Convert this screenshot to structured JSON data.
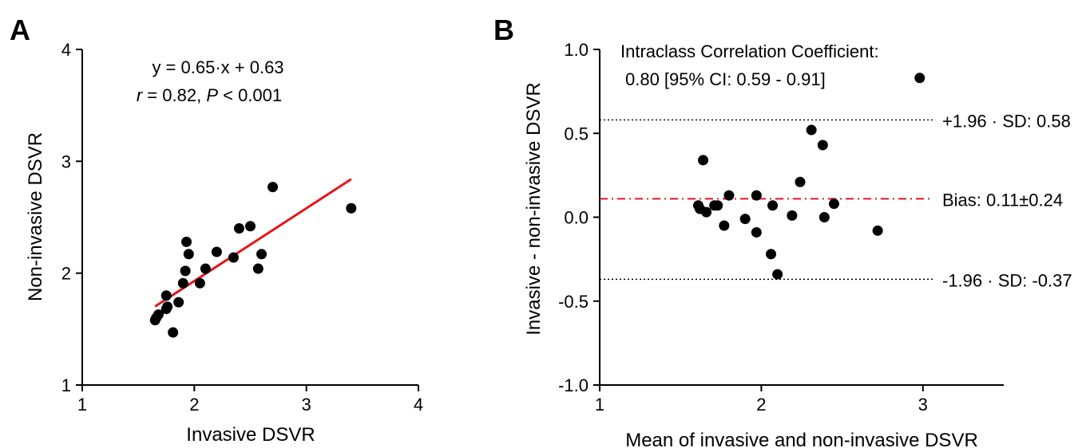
{
  "chart_data": [
    {
      "panel_label": "A",
      "type": "scatter",
      "xlabel": "Invasive DSVR",
      "ylabel": "Non-invasive DSVR",
      "xlim": [
        1,
        4
      ],
      "ylim": [
        1,
        4
      ],
      "xticks": [
        "1",
        "2",
        "3",
        "4"
      ],
      "yticks": [
        "1",
        "2",
        "3",
        "4"
      ],
      "grid": false,
      "annotation_line1": "y = 0.65·x + 0.63",
      "annotation_r": "r",
      "annotation_r_rest": " = 0.82, ",
      "annotation_p": "P",
      "annotation_p_rest": " < 0.001",
      "fit_line": {
        "slope": 0.65,
        "intercept": 0.63,
        "x_range": [
          1.65,
          3.4
        ],
        "color": "#e8141a"
      },
      "points": [
        [
          1.65,
          1.58
        ],
        [
          1.66,
          1.6
        ],
        [
          1.68,
          1.63
        ],
        [
          1.75,
          1.68
        ],
        [
          1.76,
          1.7
        ],
        [
          1.75,
          1.8
        ],
        [
          1.81,
          1.47
        ],
        [
          1.86,
          1.74
        ],
        [
          1.9,
          1.91
        ],
        [
          1.92,
          2.02
        ],
        [
          1.93,
          2.28
        ],
        [
          1.95,
          2.17
        ],
        [
          2.05,
          1.91
        ],
        [
          2.1,
          2.04
        ],
        [
          2.2,
          2.19
        ],
        [
          2.35,
          2.14
        ],
        [
          2.4,
          2.4
        ],
        [
          2.5,
          2.42
        ],
        [
          2.57,
          2.04
        ],
        [
          2.6,
          2.17
        ],
        [
          2.7,
          2.77
        ],
        [
          3.4,
          2.58
        ]
      ]
    },
    {
      "panel_label": "B",
      "type": "scatter",
      "xlabel": "Mean of invasive and non-invasive DSVR",
      "ylabel": "Invasive - non-invasive DSVR",
      "xlim": [
        1,
        3.5
      ],
      "ylim": [
        -1.0,
        1.0
      ],
      "xticks": [
        "1",
        "2",
        "3"
      ],
      "yticks": [
        "-1.0",
        "-0.5",
        "0.0",
        "0.5",
        "1.0"
      ],
      "grid": false,
      "icc_title": "Intraclass Correlation Coefficient:",
      "icc_value": "0.80 [95% CI: 0.59 - 0.91]",
      "bias": 0.11,
      "bias_label": "Bias: 0.11±0.24",
      "bias_color": "#e8141a",
      "upper_loa": 0.58,
      "upper_label": "+1.96 · SD: 0.58",
      "lower_loa": -0.37,
      "lower_label": "-1.96 · SD: -0.37",
      "points": [
        [
          1.61,
          0.07
        ],
        [
          1.62,
          0.05
        ],
        [
          1.64,
          0.34
        ],
        [
          1.66,
          0.03
        ],
        [
          1.71,
          0.07
        ],
        [
          1.73,
          0.07
        ],
        [
          1.77,
          -0.05
        ],
        [
          1.8,
          0.13
        ],
        [
          1.9,
          -0.01
        ],
        [
          1.97,
          -0.09
        ],
        [
          1.97,
          0.13
        ],
        [
          2.06,
          -0.22
        ],
        [
          2.07,
          0.07
        ],
        [
          2.1,
          -0.34
        ],
        [
          2.19,
          0.01
        ],
        [
          2.24,
          0.21
        ],
        [
          2.31,
          0.52
        ],
        [
          2.38,
          0.43
        ],
        [
          2.39,
          0.0
        ],
        [
          2.45,
          0.08
        ],
        [
          2.72,
          -0.08
        ],
        [
          2.98,
          0.83
        ]
      ]
    }
  ]
}
